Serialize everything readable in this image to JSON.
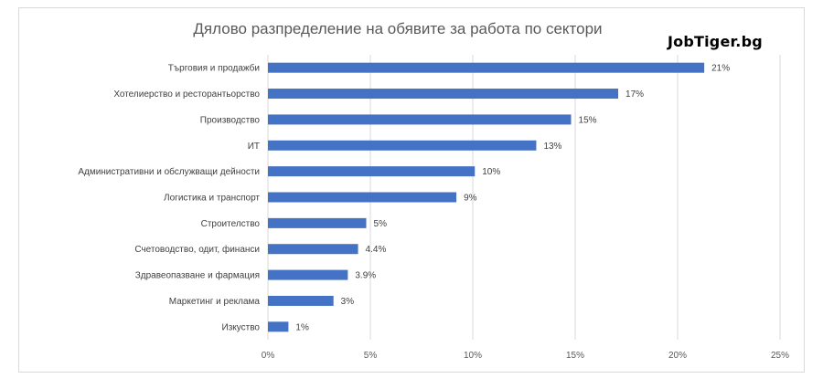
{
  "title": "Дялово разпределение на обявите за работа по сектори",
  "brand": "JobTiger.bg",
  "chart_data": {
    "type": "bar",
    "orientation": "horizontal",
    "title": "Дялово разпределение на обявите за работа по сектори",
    "categories": [
      "Търговия и продажби",
      "Хотелиерство и ресторантьорство",
      "Производство",
      "ИТ",
      "Административни и обслужващи дейности",
      "Логистика и транспорт",
      "Строителство",
      "Счетоводство, одит, финанси",
      "Здравеопазване и фармация",
      "Маркетинг и реклама",
      "Изкуство"
    ],
    "values": [
      21.3,
      17.1,
      14.8,
      13.1,
      10.1,
      9.2,
      4.8,
      4.4,
      3.9,
      3.2,
      1.0
    ],
    "data_labels": [
      "21%",
      "17%",
      "15%",
      "13%",
      "10%",
      "9%",
      "5%",
      "4.4%",
      "3.9%",
      "3%",
      "1%"
    ],
    "xlim": [
      0,
      25
    ],
    "x_ticks": [
      "0%",
      "5%",
      "10%",
      "15%",
      "20%",
      "25%"
    ],
    "x_tick_values": [
      0,
      5,
      10,
      15,
      20,
      25
    ],
    "grid": true,
    "legend": "none",
    "bar_color": "#4472c4",
    "grid_color": "#d9d9d9"
  }
}
